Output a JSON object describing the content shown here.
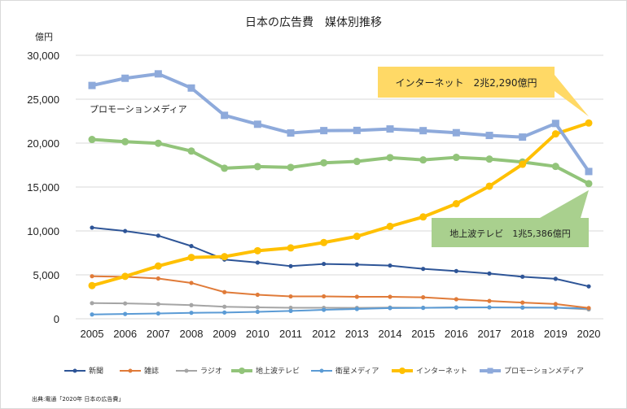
{
  "chart_data": {
    "type": "line",
    "title": "日本の広告費　媒体別推移",
    "ylabel": "億円",
    "xlabel": "",
    "ylim": [
      0,
      30000
    ],
    "yticks": [
      "0",
      "5,000",
      "10,000",
      "15,000",
      "20,000",
      "25,000",
      "30,000"
    ],
    "ytick_values": [
      0,
      5000,
      10000,
      15000,
      20000,
      25000,
      30000
    ],
    "categories": [
      "2005",
      "2006",
      "2007",
      "2008",
      "2009",
      "2010",
      "2011",
      "2012",
      "2013",
      "2014",
      "2015",
      "2016",
      "2017",
      "2018",
      "2019",
      "2020"
    ],
    "grid": true,
    "legend_position": "bottom",
    "series": [
      {
        "name": "新聞",
        "color": "#2e5597",
        "values": [
          10377,
          9986,
          9462,
          8276,
          6739,
          6396,
          5990,
          6242,
          6170,
          6057,
          5679,
          5431,
          5147,
          4784,
          4547,
          3688
        ]
      },
      {
        "name": "雑誌",
        "color": "#e07b39",
        "values": [
          4842,
          4777,
          4585,
          4078,
          3034,
          2733,
          2542,
          2551,
          2499,
          2500,
          2443,
          2223,
          2023,
          1841,
          1675,
          1223
        ]
      },
      {
        "name": "ラジオ",
        "color": "#a5a5a5",
        "values": [
          1778,
          1744,
          1671,
          1549,
          1370,
          1299,
          1247,
          1246,
          1243,
          1272,
          1254,
          1285,
          1290,
          1278,
          1260,
          1066
        ]
      },
      {
        "name": "地上波テレビ",
        "color": "#92c47a",
        "values": [
          20411,
          20161,
          19981,
          19092,
          17139,
          17321,
          17237,
          17757,
          17913,
          18347,
          18088,
          18374,
          18178,
          17848,
          17345,
          15386
        ]
      },
      {
        "name": "衛星メディア",
        "color": "#5b9bd5",
        "values": [
          487,
          544,
          603,
          676,
          709,
          784,
          891,
          1013,
          1110,
          1217,
          1235,
          1283,
          1300,
          1275,
          1267,
          1173
        ]
      },
      {
        "name": "インターネット",
        "color": "#ffc000",
        "values": [
          3777,
          4826,
          6003,
          6983,
          7069,
          7747,
          8062,
          8680,
          9381,
          10519,
          11594,
          13100,
          15094,
          17589,
          21048,
          22290
        ]
      },
      {
        "name": "プロモーションメディア",
        "color": "#8eaadb",
        "values": [
          26563,
          27385,
          27886,
          26272,
          23162,
          22147,
          21152,
          21424,
          21446,
          21610,
          21417,
          21184,
          20875,
          20685,
          22239,
          16768
        ]
      }
    ],
    "annotations": [
      {
        "text": "インターネット　2兆2,290億円",
        "series": "インターネット",
        "color": "#ffd966"
      },
      {
        "text": "地上波テレビ　1兆5,386億円",
        "series": "地上波テレビ",
        "color": "#a9d08e"
      },
      {
        "text": "プロモーションメディア",
        "series": "プロモーションメディア"
      }
    ]
  },
  "source_note": "出典:電通「2020年 日本の広告費」"
}
